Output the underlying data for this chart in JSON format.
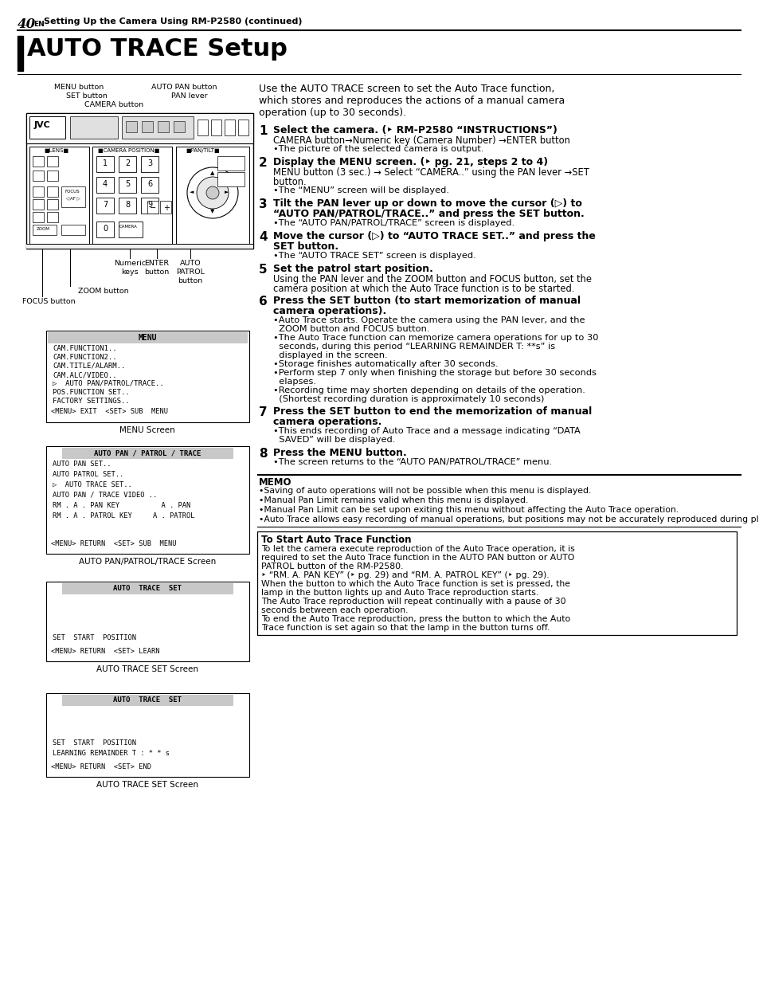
{
  "bg_color": "#ffffff",
  "page_number": "40",
  "page_suffix": "EN",
  "header_text": "Setting Up the Camera Using RM-P2580 (continued)",
  "title": "AUTO TRACE Setup",
  "intro_lines": [
    "Use the AUTO TRACE screen to set the Auto Trace function,",
    "which stores and reproduces the actions of a manual camera",
    "operation (up to 30 seconds)."
  ],
  "menu_screen_items": [
    "CAM.FUNCTION1..",
    "CAM.FUNCTION2..",
    "CAM.TITLE/ALARM..",
    "CAM.ALC/VIDEO..",
    "▷  AUTO PAN/PATROL/TRACE..",
    "POS.FUNCTION SET..",
    "FACTORY SETTINGS.."
  ],
  "menu_screen_footer": "<MENU> EXIT  <SET> SUB  MENU",
  "menu_screen_label": "MENU Screen",
  "appt_screen_title": "AUTO PAN / PATROL / TRACE",
  "appt_screen_items": [
    "AUTO PAN SET..",
    "AUTO PATROL SET..",
    "▷  AUTO TRACE SET..",
    "AUTO PAN / TRACE VIDEO ..",
    "RM . A . PAN KEY          A . PAN",
    "RM . A . PATROL KEY     A . PATROL"
  ],
  "appt_screen_footer": "<MENU> RETURN  <SET> SUB  MENU",
  "appt_screen_label": "AUTO PAN/PATROL/TRACE Screen",
  "ats1_label": "AUTO TRACE SET Screen",
  "ats2_label": "AUTO TRACE SET Screen",
  "memo_title": "MEMO",
  "memo_bullets": [
    "•Saving of auto operations will not be possible when this menu is displayed.",
    "•Manual Pan Limit remains valid when this menu is displayed.",
    "•Manual Pan Limit can be set upon exiting this menu without affecting the Auto Trace operation.",
    "•Auto Trace allows easy recording of manual operations, but positions may not be accurately reproduced during playback."
  ],
  "box_title": "To Start Auto Trace Function",
  "box_lines": [
    "To let the camera execute reproduction of the Auto Trace operation, it is",
    "required to set the Auto Trace function in the AUTO PAN button or AUTO",
    "PATROL button of the RM-P2580.",
    "‣ “RM. A. PAN KEY” (‣ pg. 29) and “RM. A. PATROL KEY” (‣ pg. 29).",
    "When the button to which the Auto Trace function is set is pressed, the",
    "lamp in the button lights up and Auto Trace reproduction starts.",
    "The Auto Trace reproduction will repeat continually with a pause of 30",
    "seconds between each operation.",
    "To end the Auto Trace reproduction, press the button to which the Auto",
    "Trace function is set again so that the lamp in the button turns off."
  ]
}
